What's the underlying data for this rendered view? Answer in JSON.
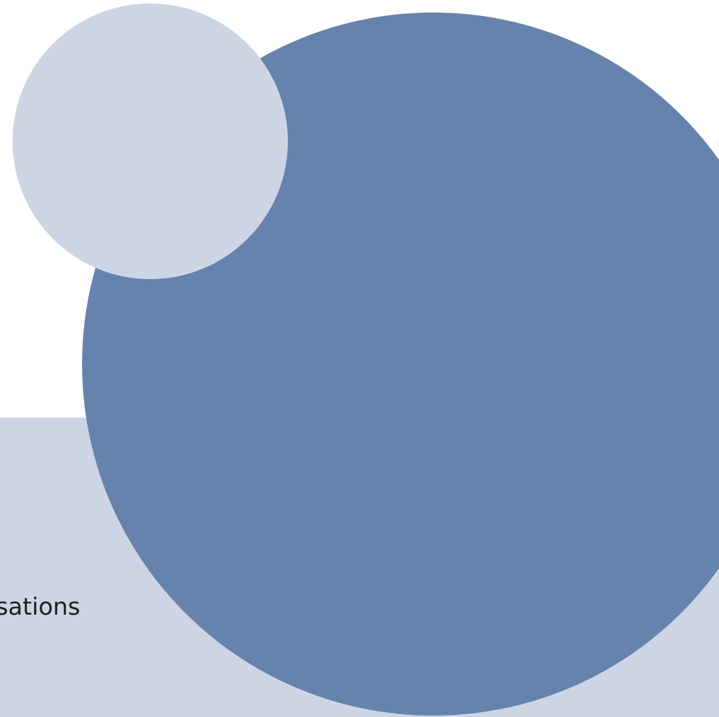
{
  "slide": {
    "caption": "sations"
  },
  "colors": {
    "background": "#ffffff",
    "band": "#cdd5e4",
    "large_circle": "#6683ad",
    "small_circle": "#cdd5e4",
    "text": "#1f1f1f"
  }
}
